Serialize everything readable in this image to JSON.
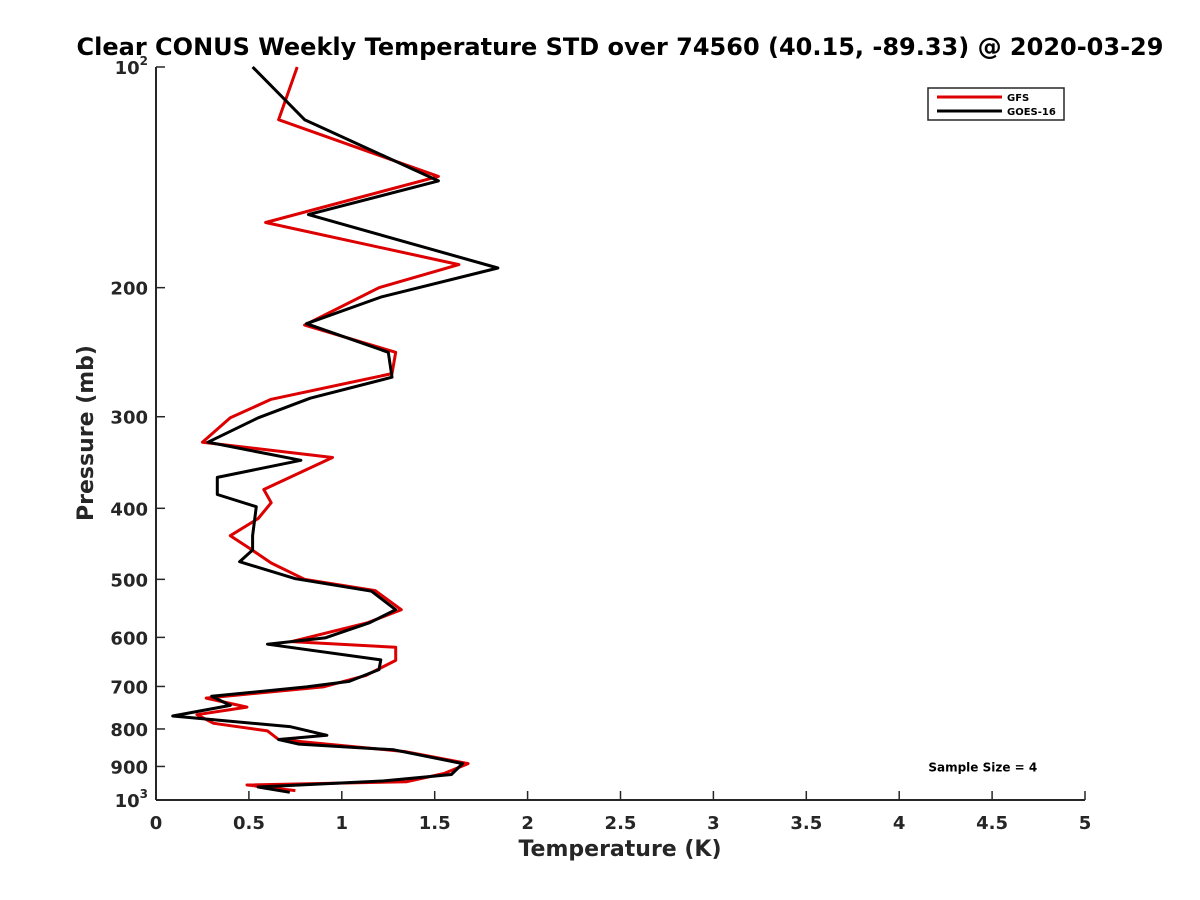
{
  "chart_data": {
    "type": "line",
    "title": "Clear CONUS Weekly Temperature STD over 74560 (40.15, -89.33) @ 2020-03-29",
    "xlabel": "Temperature (K)",
    "ylabel": "Pressure (mb)",
    "xlim": [
      0,
      5
    ],
    "ylim": [
      100,
      1000
    ],
    "y_scale": "log",
    "y_reversed": true,
    "grid": false,
    "legend_position": "top-right",
    "x_ticks": [
      0,
      0.5,
      1,
      1.5,
      2,
      2.5,
      3,
      3.5,
      4,
      4.5,
      5
    ],
    "x_tick_labels": [
      "0",
      "0.5",
      "1",
      "1.5",
      "2",
      "2.5",
      "3",
      "3.5",
      "4",
      "4.5",
      "5"
    ],
    "y_ticks": [
      {
        "value": 100,
        "base": "10",
        "exp": "2"
      },
      {
        "value": 200,
        "label": "200"
      },
      {
        "value": 300,
        "label": "300"
      },
      {
        "value": 400,
        "label": "400"
      },
      {
        "value": 500,
        "label": "500"
      },
      {
        "value": 600,
        "label": "600"
      },
      {
        "value": 700,
        "label": "700"
      },
      {
        "value": 800,
        "label": "800"
      },
      {
        "value": 900,
        "label": "900"
      },
      {
        "value": 1000,
        "base": "10",
        "exp": "3"
      }
    ],
    "series": [
      {
        "name": "GFS",
        "color": "#dd0000",
        "points": [
          [
            0.76,
            100
          ],
          [
            0.66,
            118
          ],
          [
            1.52,
            141
          ],
          [
            0.59,
            163
          ],
          [
            1.63,
            186
          ],
          [
            1.2,
            200
          ],
          [
            0.8,
            225
          ],
          [
            1.29,
            245
          ],
          [
            1.27,
            262
          ],
          [
            0.62,
            284
          ],
          [
            0.4,
            301
          ],
          [
            0.25,
            325
          ],
          [
            0.95,
            341
          ],
          [
            0.58,
            377
          ],
          [
            0.62,
            393
          ],
          [
            0.55,
            413
          ],
          [
            0.4,
            436
          ],
          [
            0.5,
            453
          ],
          [
            0.62,
            475
          ],
          [
            0.8,
            500
          ],
          [
            1.18,
            518
          ],
          [
            1.32,
            550
          ],
          [
            1.14,
            573
          ],
          [
            0.73,
            608
          ],
          [
            1.29,
            619
          ],
          [
            1.29,
            645
          ],
          [
            1.13,
            676
          ],
          [
            0.9,
            701
          ],
          [
            0.27,
            726
          ],
          [
            0.49,
            747
          ],
          [
            0.22,
            765
          ],
          [
            0.31,
            786
          ],
          [
            0.6,
            805
          ],
          [
            0.66,
            827
          ],
          [
            1.34,
            859
          ],
          [
            1.68,
            892
          ],
          [
            1.55,
            920
          ],
          [
            1.35,
            944
          ],
          [
            0.49,
            954
          ],
          [
            0.75,
            971
          ]
        ]
      },
      {
        "name": "GOES-16",
        "color": "#000000",
        "points": [
          [
            0.52,
            100
          ],
          [
            0.8,
            118
          ],
          [
            1.52,
            143
          ],
          [
            0.82,
            159
          ],
          [
            1.84,
            188
          ],
          [
            1.21,
            206
          ],
          [
            0.81,
            224
          ],
          [
            1.25,
            245
          ],
          [
            1.27,
            265
          ],
          [
            0.83,
            283
          ],
          [
            0.55,
            301
          ],
          [
            0.28,
            325
          ],
          [
            0.78,
            344
          ],
          [
            0.33,
            363
          ],
          [
            0.33,
            383
          ],
          [
            0.54,
            398
          ],
          [
            0.52,
            436
          ],
          [
            0.52,
            456
          ],
          [
            0.45,
            473
          ],
          [
            0.75,
            499
          ],
          [
            1.16,
            519
          ],
          [
            1.29,
            550
          ],
          [
            1.15,
            573
          ],
          [
            0.91,
            601
          ],
          [
            0.6,
            613
          ],
          [
            1.21,
            644
          ],
          [
            1.2,
            664
          ],
          [
            1.04,
            689
          ],
          [
            0.81,
            701
          ],
          [
            0.3,
            722
          ],
          [
            0.4,
            743
          ],
          [
            0.09,
            768
          ],
          [
            0.72,
            794
          ],
          [
            0.92,
            816
          ],
          [
            0.66,
            827
          ],
          [
            0.77,
            839
          ],
          [
            1.28,
            854
          ],
          [
            1.65,
            892
          ],
          [
            1.59,
            923
          ],
          [
            1.22,
            942
          ],
          [
            0.55,
            960
          ],
          [
            0.72,
            976
          ]
        ]
      }
    ],
    "annotations": [
      {
        "text": "Sample Size = 4",
        "x": 4.45,
        "y": 915
      }
    ]
  }
}
